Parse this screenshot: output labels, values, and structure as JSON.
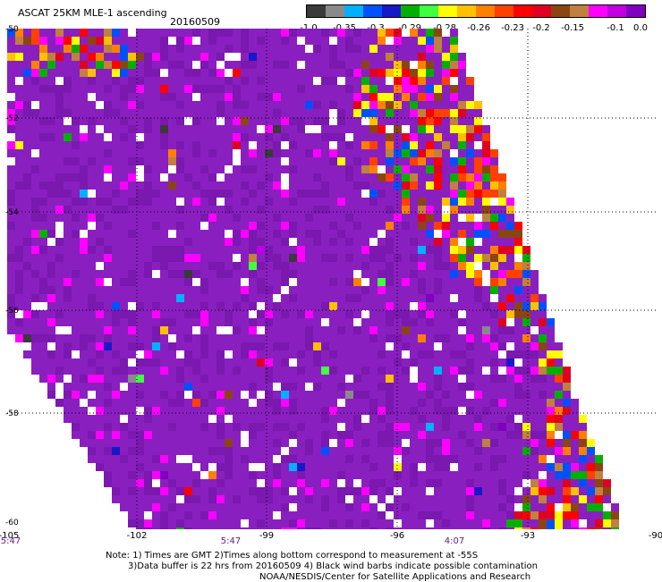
{
  "header": {
    "title": "ASCAT 25KM MLE-1 ascending",
    "date": "20160509"
  },
  "colorbar": {
    "colors": [
      "#3a3a3a",
      "#8a8a8a",
      "#00b0ff",
      "#0050ff",
      "#1818c8",
      "#00b000",
      "#40ff40",
      "#ffff00",
      "#ffc000",
      "#ff8000",
      "#ff4000",
      "#ff0000",
      "#e00020",
      "#8b4513",
      "#c08040",
      "#ff00ff",
      "#c000e0",
      "#8000c0"
    ],
    "tick_labels": [
      "-1.0",
      "-0.35",
      "-0.3",
      "-0.29",
      "-0.28",
      "-0.26",
      "-0.23",
      "-0.2",
      "-0.15",
      "-0.1",
      "0.0"
    ]
  },
  "axes": {
    "lat_labels": [
      "-50",
      "-52",
      "-54",
      "-56",
      "-58",
      "-60"
    ],
    "lon_labels": [
      "-105",
      "-102",
      "-99",
      "-96",
      "-93",
      "-90"
    ],
    "time_labels": [
      "5:47",
      "5:47",
      "4:07"
    ]
  },
  "map": {
    "lon_range": [
      -105,
      -90
    ],
    "lat_range": [
      -60,
      -50
    ],
    "background_color": "#8a1fc0",
    "gridlines": "dotted"
  },
  "notes": {
    "line1": "Note: 1) Times are GMT 2)Times along bottom correspond to measurement at -55S",
    "line2": "3)Data buffer is 22 hrs from 20160509 4) Black wind barbs indicate possible contamination",
    "line3": "NOAA/NESDIS/Center for Satellite Applications and Research"
  }
}
